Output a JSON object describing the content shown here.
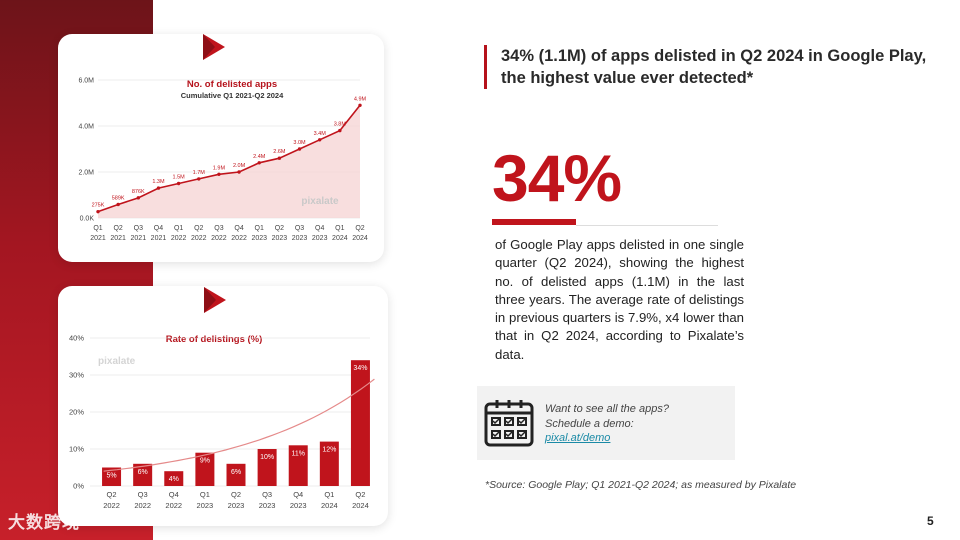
{
  "heading": "34% (1.1M) of apps delisted in Q2 2024 in Google Play,  the highest value ever detected*",
  "big_stat": "34%",
  "body_text": "of Google Play apps delisted in one single quarter (Q2 2024), showing the highest no. of delisted apps (1.1M) in the last three years. The average rate of delistings in previous quarters is 7.9%, x4 lower than that in Q2 2024, according to Pixalate’s data.",
  "cta": {
    "text": "Want to see all the apps? Schedule a demo: ",
    "link": "pixal.at/demo",
    "icon": "calendar-icon"
  },
  "source": "*Source: Google Play; Q1 2021-Q2 2024; as measured by Pixalate",
  "page_number": "5",
  "watermark": "大数跨境",
  "colors": {
    "accent": "#c0141c",
    "dark_red": "#6d1419",
    "link": "#1a8aa6",
    "area_fill": "#f6d6d6",
    "grid": "#dddddd"
  },
  "chart_data": [
    {
      "type": "area",
      "title": "No. of delisted apps",
      "subtitle": "Cumulative Q1 2021-Q2 2024",
      "watermark": "pixalate",
      "ylim": [
        0,
        6000000
      ],
      "y_ticks": [
        0,
        2000000,
        4000000,
        6000000
      ],
      "y_tick_labels": [
        "0.0K",
        "2.0M",
        "4.0M",
        "6.0M"
      ],
      "categories": [
        "Q1 2021",
        "Q2 2021",
        "Q3 2021",
        "Q4 2021",
        "Q1 2022",
        "Q2 2022",
        "Q3 2022",
        "Q4 2022",
        "Q1 2023",
        "Q2 2023",
        "Q3 2023",
        "Q4 2023",
        "Q1 2024",
        "Q2 2024"
      ],
      "category_lines": [
        [
          "Q1",
          "2021"
        ],
        [
          "Q2",
          "2021"
        ],
        [
          "Q3",
          "2021"
        ],
        [
          "Q4",
          "2021"
        ],
        [
          "Q1",
          "2022"
        ],
        [
          "Q2",
          "2022"
        ],
        [
          "Q3",
          "2022"
        ],
        [
          "Q4",
          "2022"
        ],
        [
          "Q1",
          "2023"
        ],
        [
          "Q2",
          "2023"
        ],
        [
          "Q3",
          "2023"
        ],
        [
          "Q4",
          "2023"
        ],
        [
          "Q1",
          "2024"
        ],
        [
          "Q2",
          "2024"
        ]
      ],
      "values": [
        275000,
        589000,
        876000,
        1300000,
        1500000,
        1700000,
        1900000,
        2000000,
        2400000,
        2600000,
        3000000,
        3400000,
        3800000,
        4900000
      ],
      "labels": [
        "275K",
        "589K",
        "876K",
        "1.3M",
        "1.5M",
        "1.7M",
        "1.9M",
        "2.0M",
        "2.4M",
        "2.6M",
        "3.0M",
        "3.4M",
        "3.8M",
        "4.9M"
      ]
    },
    {
      "type": "bar",
      "title": "Rate of delistings (%)",
      "watermark": "pixalate",
      "ylim": [
        0,
        40
      ],
      "y_ticks": [
        0,
        10,
        20,
        30,
        40
      ],
      "y_tick_labels": [
        "0%",
        "10%",
        "20%",
        "30%",
        "40%"
      ],
      "categories": [
        "Q2 2022",
        "Q3 2022",
        "Q4 2022",
        "Q1 2023",
        "Q2 2023",
        "Q3 2023",
        "Q4 2023",
        "Q1 2024",
        "Q2 2024"
      ],
      "category_lines": [
        [
          "Q2",
          "2022"
        ],
        [
          "Q3",
          "2022"
        ],
        [
          "Q4",
          "2022"
        ],
        [
          "Q1",
          "2023"
        ],
        [
          "Q2",
          "2023"
        ],
        [
          "Q3",
          "2023"
        ],
        [
          "Q4",
          "2023"
        ],
        [
          "Q1",
          "2024"
        ],
        [
          "Q2",
          "2024"
        ]
      ],
      "values": [
        5,
        6,
        4,
        9,
        6,
        10,
        11,
        12,
        34
      ],
      "labels": [
        "5%",
        "6%",
        "4%",
        "9%",
        "6%",
        "10%",
        "11%",
        "12%",
        "34%"
      ],
      "trend": "exponential"
    }
  ]
}
